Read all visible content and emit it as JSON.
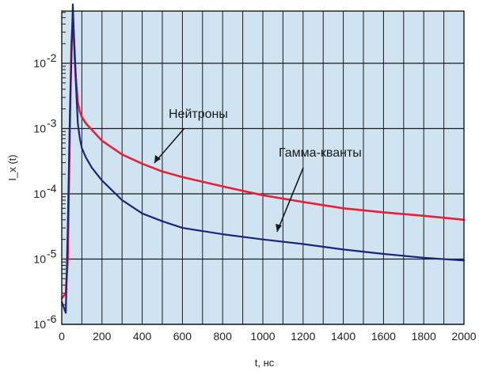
{
  "chart_data": {
    "type": "line",
    "xlabel": "t, нс",
    "ylabel": "I_x (t)",
    "xlim": [
      0,
      2000
    ],
    "ylim_log10": [
      -6,
      -1.2
    ],
    "yscale": "log",
    "grid": true,
    "background_color": "#cfe3f1",
    "grid_color": "#1a1a1a",
    "x_ticks": [
      0,
      200,
      400,
      600,
      800,
      1000,
      1200,
      1400,
      1600,
      1800,
      2000
    ],
    "x_tick_labels": [
      "0",
      "200",
      "400",
      "600",
      "800",
      "1000",
      "1200",
      "1400",
      "1600",
      "1800",
      "2000"
    ],
    "y_ticks": [
      {
        "base": "10",
        "exp": "-6",
        "value": 1e-06
      },
      {
        "base": "10",
        "exp": "-5",
        "value": 1e-05
      },
      {
        "base": "10",
        "exp": "-4",
        "value": 0.0001
      },
      {
        "base": "10",
        "exp": "-3",
        "value": 0.001
      },
      {
        "base": "10",
        "exp": "-2",
        "value": 0.01
      }
    ],
    "series": [
      {
        "name": "Нейтроны",
        "color": "#e8203a",
        "x": [
          0,
          20,
          30,
          40,
          48,
          55,
          62,
          70,
          80,
          90,
          100,
          120,
          150,
          200,
          300,
          400,
          500,
          600,
          800,
          1000,
          1200,
          1400,
          1600,
          1800,
          2000
        ],
        "y": [
          2.5e-06,
          3e-06,
          1e-05,
          0.001,
          0.02,
          0.05,
          0.02,
          0.006,
          0.0025,
          0.0018,
          0.0015,
          0.0012,
          0.00095,
          0.00065,
          0.0004,
          0.00029,
          0.00022,
          0.00018,
          0.00013,
          9.5e-05,
          7.5e-05,
          6e-05,
          5.2e-05,
          4.6e-05,
          4e-05
        ]
      },
      {
        "name": "Гамма-кванты",
        "color": "#1f237c",
        "x": [
          0,
          20,
          30,
          40,
          50,
          55,
          60,
          70,
          80,
          90,
          100,
          120,
          150,
          200,
          300,
          400,
          500,
          600,
          800,
          1000,
          1200,
          1400,
          1600,
          1800,
          2000
        ],
        "y": [
          2.2e-06,
          1.5e-06,
          3e-05,
          0.0015,
          0.02,
          0.08,
          0.03,
          0.005,
          0.0012,
          0.0007,
          0.0005,
          0.00036,
          0.00025,
          0.00016,
          8e-05,
          5e-05,
          3.8e-05,
          3e-05,
          2.4e-05,
          2e-05,
          1.7e-05,
          1.4e-05,
          1.2e-05,
          1.05e-05,
          9.5e-06
        ]
      }
    ],
    "annotations": [
      {
        "text": "Нейтроны",
        "series": "Нейтроны"
      },
      {
        "text": "Гамма-кванты",
        "series": "Гамма-кванты"
      }
    ]
  }
}
